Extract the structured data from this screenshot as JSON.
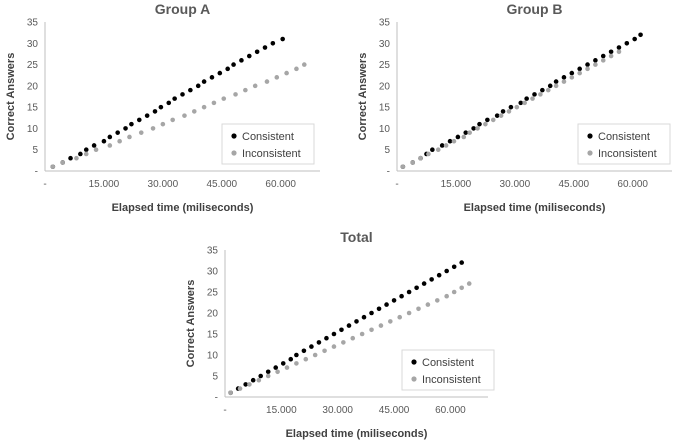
{
  "chart_data": [
    {
      "type": "scatter",
      "title": "Group A",
      "xlabel": "Elapsed time (miliseconds)",
      "ylabel": "Correct Answers",
      "xlim": [
        0,
        70000
      ],
      "ylim": [
        0,
        35
      ],
      "xticks": [
        0,
        15000,
        30000,
        45000,
        60000
      ],
      "xtick_labels": [
        "-",
        "15.000",
        "30.000",
        "45.000",
        "60.000"
      ],
      "yticks": [
        0,
        5,
        10,
        15,
        20,
        25,
        30,
        35
      ],
      "ytick_labels": [
        "-",
        "5",
        "10",
        "15",
        "20",
        "25",
        "30",
        "35"
      ],
      "grid": false,
      "legend_position": "lower-right",
      "series": [
        {
          "name": "Consistent",
          "color": "#000000",
          "points": [
            [
              2000,
              1
            ],
            [
              4500,
              2
            ],
            [
              6500,
              3
            ],
            [
              9000,
              4
            ],
            [
              10500,
              5
            ],
            [
              12500,
              6
            ],
            [
              15000,
              7
            ],
            [
              16500,
              8
            ],
            [
              18500,
              9
            ],
            [
              20500,
              10
            ],
            [
              22000,
              11
            ],
            [
              24000,
              12
            ],
            [
              26000,
              13
            ],
            [
              28000,
              14
            ],
            [
              29500,
              15
            ],
            [
              31500,
              16
            ],
            [
              33000,
              17
            ],
            [
              35000,
              18
            ],
            [
              37000,
              19
            ],
            [
              39000,
              20
            ],
            [
              40500,
              21
            ],
            [
              42500,
              22
            ],
            [
              44500,
              23
            ],
            [
              46500,
              24
            ],
            [
              48000,
              25
            ],
            [
              50000,
              26
            ],
            [
              52000,
              27
            ],
            [
              54000,
              28
            ],
            [
              56000,
              29
            ],
            [
              58000,
              30
            ],
            [
              60500,
              31
            ]
          ]
        },
        {
          "name": "Inconsistent",
          "color": "#a6a6a6",
          "points": [
            [
              2000,
              1
            ],
            [
              4500,
              2
            ],
            [
              8000,
              3
            ],
            [
              10500,
              4
            ],
            [
              13000,
              5
            ],
            [
              16500,
              6
            ],
            [
              19000,
              7
            ],
            [
              21500,
              8
            ],
            [
              24500,
              9
            ],
            [
              27500,
              10
            ],
            [
              30000,
              11
            ],
            [
              32500,
              12
            ],
            [
              35500,
              13
            ],
            [
              38000,
              14
            ],
            [
              40500,
              15
            ],
            [
              43000,
              16
            ],
            [
              45500,
              17
            ],
            [
              48500,
              18
            ],
            [
              51000,
              19
            ],
            [
              53500,
              20
            ],
            [
              56500,
              21
            ],
            [
              59000,
              22
            ],
            [
              61500,
              23
            ],
            [
              64000,
              24
            ],
            [
              66000,
              25
            ]
          ]
        }
      ]
    },
    {
      "type": "scatter",
      "title": "Group B",
      "xlabel": "Elapsed time (miliseconds)",
      "ylabel": "Correct Answers",
      "xlim": [
        0,
        70000
      ],
      "ylim": [
        0,
        35
      ],
      "xticks": [
        0,
        15000,
        30000,
        45000,
        60000
      ],
      "xtick_labels": [
        "-",
        "15.000",
        "30.000",
        "45.000",
        "60.000"
      ],
      "yticks": [
        0,
        5,
        10,
        15,
        20,
        25,
        30,
        35
      ],
      "ytick_labels": [
        "-",
        "5",
        "10",
        "15",
        "20",
        "25",
        "30",
        "35"
      ],
      "grid": false,
      "legend_position": "lower-right",
      "series": [
        {
          "name": "Consistent",
          "color": "#000000",
          "points": [
            [
              1500,
              1
            ],
            [
              4000,
              2
            ],
            [
              6000,
              3
            ],
            [
              7500,
              4
            ],
            [
              9000,
              5
            ],
            [
              11500,
              6
            ],
            [
              13500,
              7
            ],
            [
              15500,
              8
            ],
            [
              17500,
              9
            ],
            [
              19500,
              10
            ],
            [
              21000,
              11
            ],
            [
              23000,
              12
            ],
            [
              25500,
              13
            ],
            [
              27000,
              14
            ],
            [
              29000,
              15
            ],
            [
              31500,
              16
            ],
            [
              33000,
              17
            ],
            [
              35000,
              18
            ],
            [
              37000,
              19
            ],
            [
              39000,
              20
            ],
            [
              40500,
              21
            ],
            [
              42500,
              22
            ],
            [
              44500,
              23
            ],
            [
              46500,
              24
            ],
            [
              48500,
              25
            ],
            [
              50500,
              26
            ],
            [
              52500,
              27
            ],
            [
              54500,
              28
            ],
            [
              56500,
              29
            ],
            [
              58500,
              30
            ],
            [
              60500,
              31
            ],
            [
              62000,
              32
            ]
          ]
        },
        {
          "name": "Inconsistent",
          "color": "#a6a6a6",
          "points": [
            [
              1500,
              1
            ],
            [
              4000,
              2
            ],
            [
              6000,
              3
            ],
            [
              8000,
              4
            ],
            [
              10500,
              5
            ],
            [
              12500,
              6
            ],
            [
              14500,
              7
            ],
            [
              17000,
              8
            ],
            [
              18500,
              9
            ],
            [
              20500,
              10
            ],
            [
              22500,
              11
            ],
            [
              24500,
              12
            ],
            [
              26500,
              13
            ],
            [
              28500,
              14
            ],
            [
              30500,
              15
            ],
            [
              32500,
              16
            ],
            [
              34500,
              17
            ],
            [
              36500,
              18
            ],
            [
              38500,
              19
            ],
            [
              40500,
              20
            ],
            [
              42500,
              21
            ],
            [
              44500,
              22
            ],
            [
              46500,
              23
            ],
            [
              48500,
              24
            ],
            [
              50500,
              25
            ],
            [
              52500,
              26
            ],
            [
              54500,
              27
            ],
            [
              56500,
              28
            ]
          ]
        }
      ]
    },
    {
      "type": "scatter",
      "title": "Total",
      "xlabel": "Elapsed time (miliseconds)",
      "ylabel": "Correct Answers",
      "xlim": [
        0,
        70000
      ],
      "ylim": [
        0,
        35
      ],
      "xticks": [
        0,
        15000,
        30000,
        45000,
        60000
      ],
      "xtick_labels": [
        "-",
        "15.000",
        "30.000",
        "45.000",
        "60.000"
      ],
      "yticks": [
        0,
        5,
        10,
        15,
        20,
        25,
        30,
        35
      ],
      "ytick_labels": [
        "-",
        "5",
        "10",
        "15",
        "20",
        "25",
        "30",
        "35"
      ],
      "grid": false,
      "legend_position": "lower-right",
      "series": [
        {
          "name": "Consistent",
          "color": "#000000",
          "points": [
            [
              1500,
              1
            ],
            [
              3500,
              2
            ],
            [
              5500,
              3
            ],
            [
              7500,
              4
            ],
            [
              9500,
              5
            ],
            [
              11500,
              6
            ],
            [
              13500,
              7
            ],
            [
              15500,
              8
            ],
            [
              17500,
              9
            ],
            [
              19000,
              10
            ],
            [
              21000,
              11
            ],
            [
              23000,
              12
            ],
            [
              25000,
              13
            ],
            [
              27000,
              14
            ],
            [
              29000,
              15
            ],
            [
              31000,
              16
            ],
            [
              33000,
              17
            ],
            [
              35000,
              18
            ],
            [
              37000,
              19
            ],
            [
              39000,
              20
            ],
            [
              41000,
              21
            ],
            [
              43000,
              22
            ],
            [
              45000,
              23
            ],
            [
              47000,
              24
            ],
            [
              49000,
              25
            ],
            [
              51000,
              26
            ],
            [
              53000,
              27
            ],
            [
              55000,
              28
            ],
            [
              57000,
              29
            ],
            [
              59000,
              30
            ],
            [
              61000,
              31
            ],
            [
              63000,
              32
            ]
          ]
        },
        {
          "name": "Inconsistent",
          "color": "#a6a6a6",
          "points": [
            [
              1500,
              1
            ],
            [
              4000,
              2
            ],
            [
              6500,
              3
            ],
            [
              9000,
              4
            ],
            [
              11500,
              5
            ],
            [
              14000,
              6
            ],
            [
              16500,
              7
            ],
            [
              19000,
              8
            ],
            [
              21500,
              9
            ],
            [
              24000,
              10
            ],
            [
              26500,
              11
            ],
            [
              29000,
              12
            ],
            [
              31500,
              13
            ],
            [
              34000,
              14
            ],
            [
              36500,
              15
            ],
            [
              39000,
              16
            ],
            [
              41500,
              17
            ],
            [
              44000,
              18
            ],
            [
              46500,
              19
            ],
            [
              49000,
              20
            ],
            [
              51500,
              21
            ],
            [
              54000,
              22
            ],
            [
              56500,
              23
            ],
            [
              59000,
              24
            ],
            [
              61000,
              25
            ],
            [
              63000,
              26
            ],
            [
              65000,
              27
            ]
          ]
        }
      ]
    }
  ]
}
